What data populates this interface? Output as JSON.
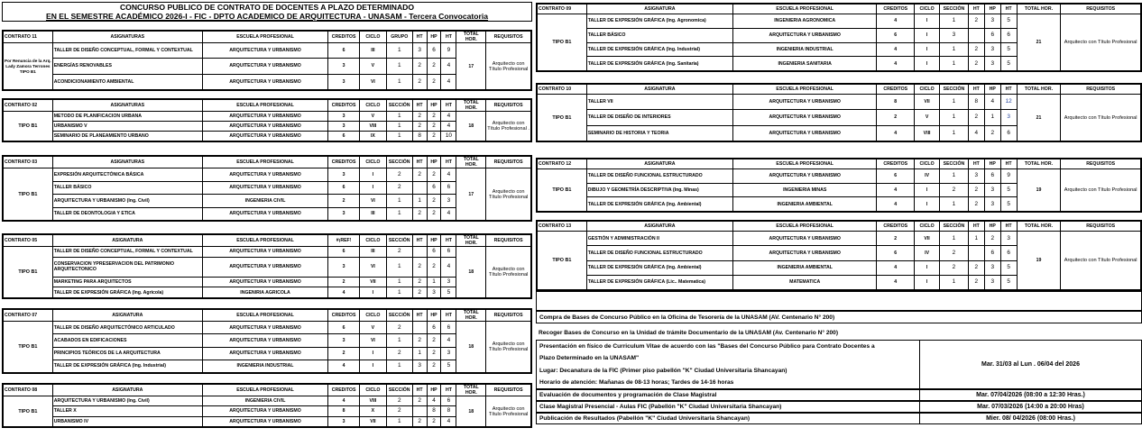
{
  "title": {
    "line1": "CONCURSO PUBLICO DE CONTRATO DE DOCENTES A PLAZO DETERMINADO",
    "line2": "EN EL SEMESTRE ACADÉMICO 2026-I -  FIC - DPTO ACADEMICO DE ARQUITECTURA - UNASAM - Tercera Convocatoria"
  },
  "colors": {
    "highlight_number": "#1f3f9a",
    "border": "#000000"
  },
  "contracts": [
    {
      "id": "c11",
      "headers": [
        "CONTRATO 11",
        "ASIGNATURAS",
        "ESCUELA PROFESIONAL",
        "CREDITOS",
        "CICLO",
        "GRUPO",
        "HT",
        "HP",
        "HT",
        "TOTAL HOR.",
        "REQUISITOS"
      ],
      "type": "Por Renuncia de la Arq. Lady Zamora Terrones TIPO B1",
      "total": "17",
      "requisito": "Arquitecto con Título Profesional",
      "rows": [
        [
          "TALLER DE DISEÑO CONCEPTUAL, FORMAL Y CONTEXTUAL",
          "ARQUITECTURA Y URBANISMO",
          "6",
          "III",
          "1",
          "3",
          "6",
          "9"
        ],
        [
          "ENERGÍAS RENOVABLES",
          "ARQUITECTURA Y URBANISMO",
          "3",
          "V",
          "1",
          "2",
          "2",
          "4"
        ],
        [
          "ACONDICIONAMIENTO AMBIENTAL",
          "ARQUITECTURA Y URBANISMO",
          "3",
          "VI",
          "1",
          "2",
          "2",
          "4"
        ]
      ]
    },
    {
      "id": "c02",
      "headers": [
        "CONTRATO 02",
        "ASIGNATURAS",
        "ESCUELA PROFESIONAL",
        "CREDITOS",
        "CICLO",
        "SECCIÓN",
        "HT",
        "HP",
        "HT",
        "TOTAL HOR.",
        "REQUISITOS"
      ],
      "type": "TIPO B1",
      "total": "18",
      "requisito": "Arquitecto con Título Profesional .",
      "rows": [
        [
          "METODO DE PLANIFICACION URBANA",
          "ARQUITECTURA Y URBANISMO",
          "3",
          "V",
          "1",
          "2",
          "2",
          "4"
        ],
        [
          "URBANISMO V",
          "ARQUITECTURA Y URBANISMO",
          "3",
          "VIII",
          "1",
          "2",
          "2",
          "4"
        ],
        [
          "SEMINARIO DE PLANEAMIENTO URBANO",
          "ARQUITECTURA Y URBANISMO",
          "6",
          "IX",
          "1",
          "8",
          "2",
          "10"
        ]
      ]
    },
    {
      "id": "c03",
      "headers": [
        "CONTRATO 03",
        "ASIGNATURAS",
        "ESCUELA PROFESIONAL",
        "CREDITOS",
        "CICLO",
        "SECCIÓN",
        "HT",
        "HP",
        "HT",
        "TOTAL HOR.",
        "REQUISITOS"
      ],
      "type": "TIPO B1",
      "total": "17",
      "requisito": "Arquitecto con Título Profesional",
      "rows": [
        [
          "EXPRESIÓN ARQUITECTÓNICA BÁSICA",
          "ARQUITECTURA Y URBANISMO",
          "3",
          "I",
          "2",
          "2",
          "2",
          "4"
        ],
        [
          "TALLER BÁSICO",
          "ARQUITECTURA Y URBANISMO",
          "6",
          "I",
          "2",
          "",
          "6",
          "6"
        ],
        [
          "ARQUITECTURA Y URBANISMO (Ing. Civil)",
          "INGENIERIA CIVIL",
          "2",
          "VI",
          "1",
          "1",
          "2",
          "3"
        ],
        [
          "TALLER DE DEONTOLOGIA Y ETICA",
          "ARQUITECTURA Y URBANISMO",
          "3",
          "III",
          "1",
          "2",
          "2",
          "4"
        ]
      ]
    },
    {
      "id": "c05",
      "headers": [
        "CONTRATO 05",
        "ASIGNATURA",
        "ESCUELA PROFESIONAL",
        "#¡REF!",
        "CICLO",
        "SECCIÓN",
        "HT",
        "HP",
        "HT",
        "TOTAL HOR.",
        "REQUISITOS"
      ],
      "type": "TIPO B1",
      "total": "18",
      "requisito": "Arquitecto con Título Profesional",
      "rows": [
        [
          "TALLER DE DISEÑO CONCEPTUAL, FORMAL Y CONTEXTUAL",
          "ARQUITECTURA Y URBANISMO",
          "6",
          "III",
          "2",
          "",
          "6",
          "6"
        ],
        [
          "CONSERVACION YPRESERVACION DEL PATRIMONIO ARQUITECTONICO",
          "ARQUITECTURA Y URBANISMO",
          "3",
          "VI",
          "1",
          "2",
          "2",
          "4"
        ],
        [
          "MARKETING PARA ARQUITECTOS",
          "ARQUITECTURA Y URBANISMO",
          "2",
          "VII",
          "1",
          "2",
          "1",
          "3"
        ],
        [
          "TALLER DE EXPRESIÓN GRÁFICA (Ing. Agricola)",
          "INGENIRIA AGRICOLA",
          "4",
          "I",
          "1",
          "2",
          "3",
          "5"
        ]
      ]
    },
    {
      "id": "c07",
      "headers": [
        "CONTRATO 07",
        "ASIGNATURA",
        "ESCUELA PROFESIONAL",
        "CREDITOS",
        "CICLO",
        "SECCIÓN",
        "HT",
        "HP",
        "HT",
        "TOTAL HOR.",
        "REQUISITOS"
      ],
      "type": "TIPO B1",
      "total": "18",
      "requisito": "Arquitecto con Título Profesional",
      "rows": [
        [
          "TALLER DE DISEÑO ARQUITECTÓNICO ARTICULADO",
          "ARQUITECTURA Y URBANISMO",
          "6",
          "V",
          "2",
          "",
          "6",
          "6"
        ],
        [
          "ACABADOS EN EDIFICACIONES",
          "ARQUITECTURA Y URBANISMO",
          "3",
          "VI",
          "1",
          "2",
          "2",
          "4"
        ],
        [
          "PRINCIPIOS TEÓRICOS DE LA ARQUITECTURA",
          "ARQUITECTURA Y URBANISMO",
          "2",
          "I",
          "2",
          "1",
          "2",
          "3"
        ],
        [
          "TALLER DE EXPRESIÓN GRÁFICA (Ing. Industrial)",
          "INGENIERIA  INDUSTRIAL",
          "4",
          "I",
          "1",
          "3",
          "2",
          "5"
        ]
      ]
    },
    {
      "id": "c08",
      "headers": [
        "CONTRATO 08",
        "ASIGNATURA",
        "ESCUELA PROFESIONAL",
        "CREDITOS",
        "CICLO",
        "SECCIÓN",
        "HT",
        "HP",
        "HT",
        "TOTAL HOR.",
        "REQUISITOS"
      ],
      "type": "TIPO B1",
      "total": "18",
      "requisito": "Arquitecto con Título Profesional",
      "rows": [
        [
          "ARQUITECTURA Y URBANISMO (Ing. Civil)",
          "INGENIERIA CIVIL",
          "4",
          "VIII",
          "2",
          "2",
          "4",
          "6"
        ],
        [
          "TALLER X",
          "ARQUITECTURA Y URBANISMO",
          "8",
          "X",
          "2",
          "",
          "8",
          "8"
        ],
        [
          "URBANISMO IV",
          "ARQUITECTURA Y URBANISMO",
          "3",
          "VII",
          "1",
          "2",
          "2",
          "4"
        ]
      ]
    },
    {
      "id": "c09",
      "headers": [
        "CONTRATO 09",
        "ASIGNATURA",
        "ESCUELA PROFESIONAL",
        "CREDITOS",
        "CICLO",
        "SECCIÓN",
        "HT",
        "HP",
        "HT",
        "TOTAL HOR.",
        "REQUISITOS"
      ],
      "type": "TIPO B1",
      "total": "21",
      "requisito": "Arquitecto con Título Profesional",
      "rows": [
        [
          "TALLER DE EXPRESIÓN GRÁFICA (Ing. Agronomica)",
          "INGENIERIA AGRONOMICA",
          "4",
          "I",
          "1",
          "2",
          "3",
          "5"
        ],
        [
          "TALLER BÁSICO",
          "ARQUITECTURA Y URBANISMO",
          "6",
          "I",
          "3",
          "",
          "6",
          "6"
        ],
        [
          "TALLER DE EXPRESIÓN GRÁFICA (Ing. Industrial)",
          "INGENIERIA INDUSTRIAL",
          "4",
          "I",
          "1",
          "2",
          "3",
          "5"
        ],
        [
          "TALLER DE EXPRESIÓN GRÁFICA (Ing. Sanitaria)",
          "INGENIERIA SANITARIA",
          "4",
          "I",
          "1",
          "2",
          "3",
          "5"
        ]
      ]
    },
    {
      "id": "c10",
      "headers": [
        "CONTRATO 10",
        "ASIGNATURA",
        "ESCUELA PROFESIONAL",
        "CREDITOS",
        "CICLO",
        "SECCIÓN",
        "HT",
        "HP",
        "HT",
        "TOTAL HOR.",
        "REQUISITOS"
      ],
      "type": "TIPO B1",
      "total": "21",
      "requisito": "Arquitecto con Título Profesional",
      "blue_last": true,
      "rows": [
        [
          "TALLER VII",
          "ARQUITECTURA Y URBANISMO",
          "8",
          "VII",
          "1",
          "8",
          "4",
          "12"
        ],
        [
          "TALLER DE DISEÑO DE INTERIORES",
          "ARQUITECTURA Y URBANISMO",
          "2",
          "V",
          "1",
          "2",
          "1",
          "3"
        ],
        [
          "SEMINARIO DE HISTORIA Y TEORIA",
          "ARQUITECTURA Y URBANISMO",
          "4",
          "VIII",
          "1",
          "4",
          "2",
          "6"
        ]
      ]
    },
    {
      "id": "c12",
      "headers": [
        "CONTRATO 12",
        "ASIGNATURA",
        "ESCUELA PROFESIONAL",
        "CREDITOS",
        "CICLO",
        "SECCIÓN",
        "HT",
        "HP",
        "HT",
        "TOTAL HOR.",
        "REQUISITOS"
      ],
      "type": "TIPO B1",
      "total": "19",
      "requisito": "Arquitecto con Título Profesional",
      "rows": [
        [
          "TALLER DE DISEÑO FUNCIONAL ESTRUCTURADO",
          "ARQUITECTURA Y URBANISMO",
          "6",
          "IV",
          "1",
          "3",
          "6",
          "9"
        ],
        [
          "DIBUJO Y GEOMETRÍA DESCRIPTIVA (Ing. Minas)",
          "INGENIERIA MINAS",
          "4",
          "I",
          "2",
          "2",
          "3",
          "5"
        ],
        [
          "TALLER DE EXPRESIÓN GRÁFICA (Ing. Ambiental)",
          "INGENIERIA AMBIENTAL",
          "4",
          "I",
          "1",
          "2",
          "3",
          "5"
        ]
      ]
    },
    {
      "id": "c13",
      "headers": [
        "CONTRATO 13",
        "ASIGNATURA",
        "ESCUELA PROFESIONAL",
        "CREDITOS",
        "CICLO",
        "SECCIÓN",
        "HT",
        "HP",
        "HT",
        "TOTAL HOR.",
        "REQUISITOS"
      ],
      "type": "TIPO B1",
      "total": "19",
      "requisito": "Arquitecto con Título Profesional",
      "rows": [
        [
          "GESTIÓN Y ADMINISTRACIÓN II",
          "ARQUITECTURA Y URBANISMO",
          "2",
          "VII",
          "1",
          "1",
          "2",
          "3"
        ],
        [
          "TALLER DE DISEÑO FUNCIONAL ESTRUCTURADO",
          "ARQUITECTURA Y URBANISMO",
          "6",
          "IV",
          "2",
          "",
          "6",
          "6"
        ],
        [
          "TALLER DE EXPRESIÓN GRÁFICA (Ing. Ambiental)",
          "INGENIERIA AMBIENTAL",
          "4",
          "I",
          "2",
          "2",
          "3",
          "5"
        ],
        [
          "TALLER DE EXPRESIÓN GRÁFICA (Lic.. Matematica)",
          "MATEMATICA",
          "4",
          "I",
          "1",
          "2",
          "3",
          "5"
        ]
      ]
    }
  ],
  "schedule": {
    "compra": "Compra de Bases de Concurso Público  en la Oficina de Tesorería de la UNASAM (AV. Centenario N° 200)",
    "recoger": "Recoger Bases de Concurso en la Unidad de trámite Documentario de la UNASAM (Av. Centenario N° 200)",
    "presentacion": {
      "lines": [
        "Presentación en físico de Curriculum Vitae de acuerdo con las \"Bases del Concurso Público para Contrato Docentes a",
        "Plazo Determinado en la UNASAM\"",
        "Lugar: Decanatura de la FIC (Primer piso pabellón \"K\" Ciudad Universitaria Shancayan)",
        "Horario de atención: Mañanas de 08-13 horas; Tardes de 14-16 horas"
      ],
      "date": "Mar. 31/03 al Lun . 06/04 del 2026"
    },
    "items": [
      {
        "label": "Evaluación de documentos y programación de Clase Magistral",
        "date": "Mar. 07/04/2026 (08:00  a 12:30 Hras.)"
      },
      {
        "label": "Clase Magistral Presencial - Aulas FIC (Pabellón \"K\" Ciudad Universitaria Shancayan)",
        "date": "Mar. 07/03/2026 (14:00  a 20:00 Hras)"
      },
      {
        "label": "Publicación de Resultados (Pabellón \"K\" Ciudad Universitaria Shancayan)",
        "date": "Mier. 08/ 04/2026 (08:00 Hras.)"
      }
    ]
  }
}
